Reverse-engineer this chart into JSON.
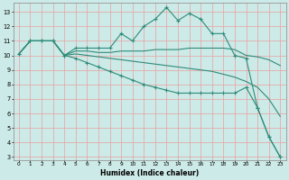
{
  "title": "",
  "xlabel": "Humidex (Indice chaleur)",
  "bg_color": "#cceae7",
  "grid_color": "#e8a0a0",
  "line_color": "#2e8b7a",
  "xlim": [
    -0.5,
    23.5
  ],
  "ylim": [
    2.8,
    13.6
  ],
  "yticks": [
    3,
    4,
    5,
    6,
    7,
    8,
    9,
    10,
    11,
    12,
    13
  ],
  "xticks": [
    0,
    1,
    2,
    3,
    4,
    5,
    6,
    7,
    8,
    9,
    10,
    11,
    12,
    13,
    14,
    15,
    16,
    17,
    18,
    19,
    20,
    21,
    22,
    23
  ],
  "line1_x": [
    0,
    1,
    2,
    3,
    4,
    5,
    6,
    7,
    8,
    9,
    10,
    11,
    12,
    13,
    14,
    15,
    16,
    17,
    18,
    19,
    20,
    21,
    22,
    23
  ],
  "line1_y": [
    10.1,
    11.0,
    11.0,
    11.0,
    10.0,
    10.5,
    10.5,
    10.5,
    10.5,
    11.5,
    11.0,
    12.0,
    12.5,
    13.3,
    12.4,
    12.9,
    12.5,
    11.5,
    11.5,
    10.0,
    9.8,
    6.4,
    4.4,
    3.0
  ],
  "line2_x": [
    0,
    1,
    2,
    3,
    4,
    5,
    6,
    7,
    8,
    9,
    10,
    11,
    12,
    13,
    14,
    15,
    16,
    17,
    18,
    19,
    20,
    21,
    22,
    23
  ],
  "line2_y": [
    10.1,
    11.0,
    11.0,
    11.0,
    10.0,
    10.3,
    10.3,
    10.2,
    10.2,
    10.3,
    10.3,
    10.3,
    10.4,
    10.4,
    10.4,
    10.5,
    10.5,
    10.5,
    10.5,
    10.4,
    10.0,
    9.9,
    9.7,
    9.3
  ],
  "line3_x": [
    0,
    1,
    2,
    3,
    4,
    5,
    6,
    7,
    8,
    9,
    10,
    11,
    12,
    13,
    14,
    15,
    16,
    17,
    18,
    19,
    20,
    21,
    22,
    23
  ],
  "line3_y": [
    10.1,
    11.0,
    11.0,
    11.0,
    10.0,
    10.1,
    10.0,
    9.9,
    9.8,
    9.7,
    9.6,
    9.5,
    9.4,
    9.3,
    9.2,
    9.1,
    9.0,
    8.9,
    8.7,
    8.5,
    8.2,
    7.8,
    7.0,
    5.8
  ],
  "line4_x": [
    0,
    1,
    2,
    3,
    4,
    5,
    6,
    7,
    8,
    9,
    10,
    11,
    12,
    13,
    14,
    15,
    16,
    17,
    18,
    19,
    20,
    21,
    22,
    23
  ],
  "line4_y": [
    10.1,
    11.0,
    11.0,
    11.0,
    10.0,
    9.8,
    9.5,
    9.2,
    8.9,
    8.6,
    8.3,
    8.0,
    7.8,
    7.6,
    7.4,
    7.4,
    7.4,
    7.4,
    7.4,
    7.4,
    7.8,
    6.4,
    4.4,
    3.0
  ]
}
